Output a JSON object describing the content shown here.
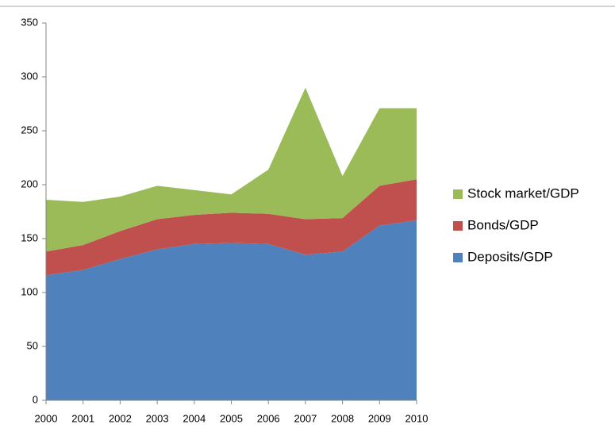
{
  "chart_data": {
    "type": "stacked_area",
    "categories": [
      "2000",
      "2001",
      "2002",
      "2003",
      "2004",
      "2005",
      "2006",
      "2007",
      "2008",
      "2009",
      "2010"
    ],
    "series": [
      {
        "name": "Deposits/GDP",
        "color": "#4f81bd",
        "values": [
          116,
          121,
          131,
          140,
          145,
          146,
          145,
          135,
          138,
          162,
          167
        ]
      },
      {
        "name": "Bonds/GDP",
        "color": "#c0504d",
        "values": [
          22,
          23,
          26,
          28,
          27,
          28,
          28,
          33,
          31,
          37,
          38
        ]
      },
      {
        "name": "Stock market/GDP",
        "color": "#9bbb59",
        "values": [
          48,
          40,
          32,
          31,
          23,
          17,
          41,
          122,
          39,
          72,
          66
        ]
      }
    ],
    "ylim": [
      0,
      350
    ],
    "yticks": [
      0,
      50,
      100,
      150,
      200,
      250,
      300,
      350
    ],
    "legend": "right"
  }
}
